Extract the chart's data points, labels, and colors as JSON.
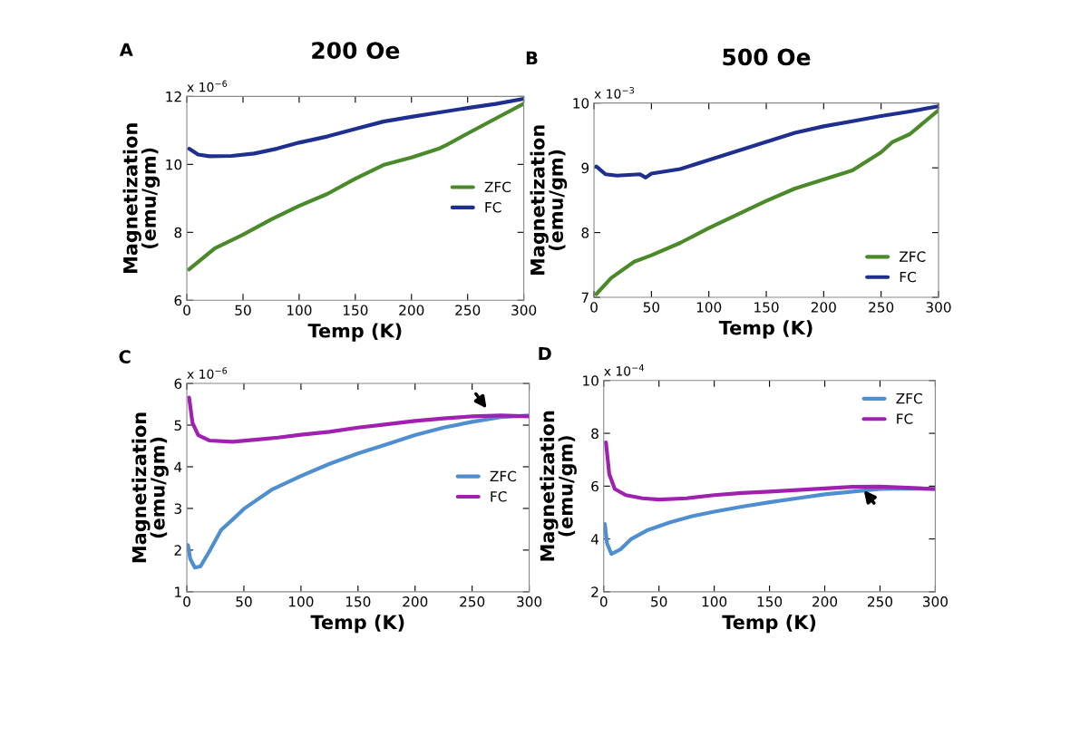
{
  "chart_data": [
    {
      "type": "line",
      "title": "200 Oe",
      "xlabel": "Temp (K)",
      "ylabel": "Magnetization\n(emu/gm)",
      "annotations": [
        "A",
        "x 10$^{−6}$"
      ],
      "xlim": [
        0,
        300
      ],
      "xticks": [
        0,
        50,
        100,
        150,
        200,
        250,
        300
      ],
      "ylim": [
        6,
        12
      ],
      "yticks": [
        6,
        8,
        10,
        12
      ],
      "legend": "right",
      "grid": false,
      "series": [
        {
          "name": "ZFC",
          "color": "#4a8a2a",
          "x": [
            2,
            25,
            50,
            75,
            100,
            125,
            150,
            175,
            200,
            225,
            230,
            250,
            275,
            300
          ],
          "values": [
            6.91,
            7.53,
            7.93,
            8.38,
            8.78,
            9.13,
            9.58,
            9.98,
            10.2,
            10.47,
            10.55,
            10.91,
            11.35,
            11.79
          ]
        },
        {
          "name": "FC",
          "color": "#1f2f8f",
          "x": [
            2,
            10,
            20,
            40,
            60,
            80,
            100,
            125,
            150,
            175,
            200,
            225,
            250,
            275,
            300
          ],
          "values": [
            10.46,
            10.29,
            10.24,
            10.25,
            10.32,
            10.46,
            10.64,
            10.82,
            11.04,
            11.26,
            11.4,
            11.53,
            11.66,
            11.78,
            11.93
          ]
        }
      ]
    },
    {
      "type": "line",
      "title": "500 Oe",
      "xlabel": "Temp (K)",
      "ylabel": "Magnetization\n(emu/gm)",
      "annotations": [
        "B",
        "x 10$^{−3}$"
      ],
      "xlim": [
        0,
        300
      ],
      "xticks": [
        0,
        50,
        100,
        150,
        200,
        250,
        300
      ],
      "ylim": [
        7,
        10
      ],
      "yticks": [
        7,
        8,
        9,
        10
      ],
      "legend": "bottom right",
      "grid": false,
      "series": [
        {
          "name": "ZFC",
          "color": "#4a8a2a",
          "x": [
            2,
            15,
            35,
            50,
            75,
            100,
            125,
            150,
            175,
            200,
            225,
            250,
            260,
            275,
            300
          ],
          "values": [
            7.05,
            7.3,
            7.55,
            7.65,
            7.84,
            8.07,
            8.28,
            8.49,
            8.68,
            8.82,
            8.96,
            9.24,
            9.4,
            9.52,
            9.89
          ]
        },
        {
          "name": "FC",
          "color": "#1f2f8f",
          "x": [
            2,
            10,
            20,
            40,
            45,
            50,
            75,
            100,
            125,
            150,
            175,
            200,
            225,
            250,
            275,
            300
          ],
          "values": [
            9.02,
            8.9,
            8.88,
            8.9,
            8.85,
            8.91,
            8.98,
            9.12,
            9.26,
            9.4,
            9.54,
            9.64,
            9.72,
            9.8,
            9.87,
            9.95
          ]
        }
      ]
    },
    {
      "type": "line",
      "xlabel": "Temp (K)",
      "ylabel": "Magnetization\n(emu/gm)",
      "annotations": [
        "C",
        "x 10$^{−6}$"
      ],
      "xlim": [
        0,
        300
      ],
      "xticks": [
        0,
        50,
        100,
        150,
        200,
        250,
        300
      ],
      "ylim": [
        1,
        6
      ],
      "yticks": [
        1,
        2,
        3,
        4,
        5,
        6
      ],
      "legend": "right",
      "grid": false,
      "series": [
        {
          "name": "ZFC",
          "color": "#4f8fd0",
          "x": [
            1,
            3,
            7,
            12,
            20,
            30,
            40,
            50,
            75,
            100,
            125,
            150,
            175,
            200,
            225,
            250,
            275,
            300
          ],
          "values": [
            2.12,
            1.79,
            1.58,
            1.61,
            1.98,
            2.48,
            2.73,
            2.99,
            3.46,
            3.78,
            4.07,
            4.32,
            4.54,
            4.76,
            4.94,
            5.08,
            5.19,
            5.23
          ]
        },
        {
          "name": "FC",
          "color": "#a020b0",
          "x": [
            2,
            5,
            10,
            20,
            40,
            60,
            80,
            100,
            125,
            150,
            175,
            200,
            225,
            250,
            275,
            300
          ],
          "values": [
            5.66,
            5.05,
            4.76,
            4.63,
            4.6,
            4.65,
            4.7,
            4.77,
            4.84,
            4.94,
            5.02,
            5.1,
            5.16,
            5.21,
            5.23,
            5.21
          ]
        }
      ]
    },
    {
      "type": "line",
      "xlabel": "Temp (K)",
      "ylabel": "Magnetization\n(emu/gm)",
      "annotations": [
        "D",
        "x 10$^{−4}$"
      ],
      "xlim": [
        0,
        300
      ],
      "xticks": [
        0,
        50,
        100,
        150,
        200,
        250,
        300
      ],
      "ylim": [
        2,
        10
      ],
      "yticks": [
        2,
        4,
        6,
        8,
        10
      ],
      "legend": "top right",
      "grid": false,
      "series": [
        {
          "name": "ZFC",
          "color": "#4f8fd0",
          "x": [
            1,
            3,
            7,
            15,
            25,
            40,
            60,
            80,
            100,
            125,
            150,
            175,
            200,
            225,
            250,
            275,
            300
          ],
          "values": [
            4.57,
            3.83,
            3.43,
            3.6,
            4.0,
            4.34,
            4.63,
            4.86,
            5.03,
            5.22,
            5.39,
            5.54,
            5.69,
            5.79,
            5.89,
            5.91,
            5.89
          ]
        },
        {
          "name": "FC",
          "color": "#a020b0",
          "x": [
            2,
            5,
            10,
            20,
            35,
            50,
            75,
            100,
            125,
            150,
            175,
            200,
            225,
            250,
            275,
            300
          ],
          "values": [
            7.66,
            6.46,
            5.89,
            5.66,
            5.54,
            5.49,
            5.54,
            5.66,
            5.74,
            5.79,
            5.85,
            5.91,
            5.97,
            5.98,
            5.94,
            5.89
          ]
        }
      ]
    }
  ]
}
